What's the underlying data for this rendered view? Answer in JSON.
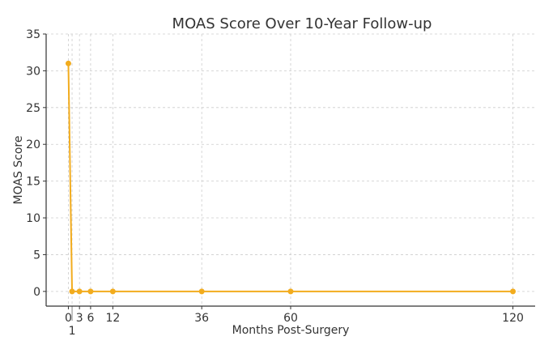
{
  "chart_data": {
    "type": "line",
    "title": "MOAS Score Over 10-Year Follow-up",
    "xlabel": "Months Post-Surgery",
    "ylabel": "MOAS Score",
    "x": [
      0,
      1,
      3,
      6,
      12,
      36,
      60,
      120
    ],
    "series": [
      {
        "name": "MOAS Score",
        "values": [
          31,
          0,
          0,
          0,
          0,
          0,
          0,
          0
        ],
        "color": "#f2ac1e"
      }
    ],
    "xticks": [
      0,
      1,
      3,
      6,
      12,
      36,
      60,
      120
    ],
    "xtick_labels": [
      "0",
      "1",
      "3",
      "6",
      "12",
      "36",
      "60",
      "120"
    ],
    "yticks": [
      0,
      5,
      10,
      15,
      20,
      25,
      30,
      35
    ],
    "ytick_labels": [
      "0",
      "5",
      "10",
      "15",
      "20",
      "25",
      "30",
      "35"
    ],
    "xlim": [
      -6,
      126
    ],
    "ylim": [
      -2,
      35
    ],
    "grid": true,
    "legend": "none"
  }
}
